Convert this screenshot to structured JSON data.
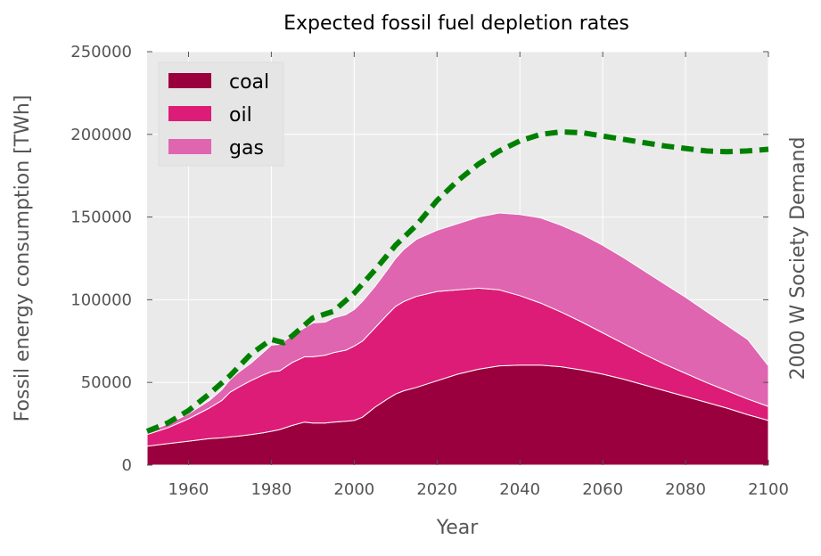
{
  "chart_data": {
    "type": "area",
    "title": "Expected fossil fuel depletion rates",
    "xlabel": "Year",
    "ylabel": "Fossil energy consumption [TWh]",
    "right_ylabel": "2000 W Society Demand",
    "xlim": [
      1950,
      2100
    ],
    "ylim": [
      0,
      250000
    ],
    "xticks": [
      "1960",
      "1980",
      "2000",
      "2020",
      "2040",
      "2060",
      "2080",
      "2100"
    ],
    "yticks": [
      "0",
      "50000",
      "100000",
      "150000",
      "200000",
      "250000"
    ],
    "grid": true,
    "legend_position": "top-left",
    "stacked": true,
    "x": [
      1950,
      1955,
      1960,
      1965,
      1968,
      1970,
      1972,
      1975,
      1978,
      1980,
      1982,
      1985,
      1988,
      1990,
      1993,
      1995,
      1998,
      2000,
      2002,
      2005,
      2008,
      2010,
      2012,
      2015,
      2020,
      2025,
      2030,
      2035,
      2040,
      2045,
      2050,
      2055,
      2060,
      2065,
      2070,
      2075,
      2080,
      2085,
      2090,
      2095,
      2100
    ],
    "series": [
      {
        "name": "coal",
        "color": "#99003d",
        "values": [
          11500,
          13000,
          14500,
          16000,
          16500,
          17000,
          17500,
          18500,
          19500,
          20500,
          21500,
          24000,
          26000,
          25500,
          25500,
          26000,
          26500,
          27000,
          29000,
          35000,
          40000,
          43000,
          45000,
          47000,
          51000,
          55000,
          58000,
          60000,
          60500,
          60500,
          59500,
          57500,
          55000,
          52000,
          48500,
          45000,
          41500,
          38000,
          34500,
          30500,
          27000
        ]
      },
      {
        "name": "oil",
        "color": "#dd1c77",
        "values": [
          7000,
          9500,
          13500,
          18500,
          22500,
          27000,
          29500,
          32500,
          35000,
          36000,
          35500,
          38000,
          39500,
          40000,
          41000,
          42000,
          43000,
          45000,
          46000,
          48000,
          51000,
          53000,
          54000,
          55000,
          54000,
          51000,
          49000,
          46000,
          42000,
          37500,
          33000,
          29000,
          25000,
          21500,
          18500,
          16000,
          14000,
          12000,
          10500,
          9500,
          8500
        ]
      },
      {
        "name": "gas",
        "color": "#df65b0",
        "values": [
          1500,
          2500,
          3000,
          4500,
          6500,
          7500,
          9000,
          10500,
          13500,
          16000,
          16000,
          16500,
          17500,
          20500,
          20000,
          21000,
          21500,
          22000,
          24000,
          25000,
          27000,
          29000,
          31500,
          34500,
          37000,
          40000,
          43000,
          46500,
          49000,
          51500,
          52500,
          53000,
          53000,
          52000,
          50500,
          48500,
          46000,
          43000,
          39500,
          36000,
          24500
        ]
      }
    ],
    "demand_series": {
      "name": "2000 W Society Demand",
      "color": "#008000",
      "x": [
        1950,
        1955,
        1960,
        1965,
        1970,
        1975,
        1980,
        1983,
        1985,
        1990,
        1995,
        2000,
        2005,
        2010,
        2015,
        2020,
        2025,
        2030,
        2035,
        2040,
        2045,
        2050,
        2055,
        2060,
        2065,
        2070,
        2075,
        2080,
        2085,
        2090,
        2095,
        2100
      ],
      "values": [
        20500,
        25500,
        33000,
        43000,
        54000,
        67000,
        76000,
        74000,
        78000,
        89000,
        93000,
        104000,
        118000,
        133000,
        145000,
        160000,
        172000,
        182000,
        190000,
        196000,
        200000,
        201500,
        201000,
        199000,
        197000,
        195000,
        193000,
        191500,
        190000,
        189500,
        190000,
        191000
      ]
    }
  }
}
